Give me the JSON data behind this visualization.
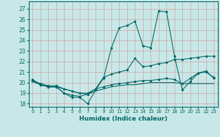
{
  "xlabel": "Humidex (Indice chaleur)",
  "background_color": "#c8e8e8",
  "line_color": "#006666",
  "xlim": [
    -0.5,
    23.5
  ],
  "ylim": [
    17.7,
    27.7
  ],
  "yticks": [
    18,
    19,
    20,
    21,
    22,
    23,
    24,
    25,
    26,
    27
  ],
  "xticks": [
    0,
    1,
    2,
    3,
    4,
    5,
    6,
    7,
    8,
    9,
    10,
    11,
    12,
    13,
    14,
    15,
    16,
    17,
    18,
    19,
    20,
    21,
    22,
    23
  ],
  "lines": [
    {
      "x": [
        0,
        1,
        2,
        3,
        4,
        5,
        6,
        7,
        8,
        9,
        10,
        11,
        12,
        13,
        14,
        15,
        16,
        17,
        18,
        19,
        20,
        21,
        22,
        23
      ],
      "y": [
        20.3,
        19.8,
        19.6,
        19.6,
        19.0,
        18.6,
        18.6,
        18.0,
        19.3,
        20.4,
        23.3,
        25.2,
        25.4,
        25.8,
        23.5,
        23.3,
        26.8,
        26.7,
        22.5,
        19.3,
        20.1,
        20.9,
        21.1,
        20.4
      ],
      "marker": true
    },
    {
      "x": [
        0,
        1,
        2,
        3,
        4,
        5,
        6,
        7,
        8,
        9,
        10,
        11,
        12,
        13,
        14,
        15,
        16,
        17,
        18,
        19,
        20,
        21,
        22,
        23
      ],
      "y": [
        20.2,
        19.8,
        19.6,
        19.6,
        19.0,
        18.8,
        18.7,
        18.9,
        19.4,
        20.5,
        20.8,
        21.0,
        21.2,
        22.3,
        21.5,
        21.6,
        21.8,
        21.9,
        22.2,
        22.2,
        22.3,
        22.4,
        22.5,
        22.5
      ],
      "marker": true
    },
    {
      "x": [
        0,
        1,
        2,
        3,
        4,
        5,
        6,
        7,
        8,
        9,
        10,
        11,
        12,
        13,
        14,
        15,
        16,
        17,
        18,
        19,
        20,
        21,
        22,
        23
      ],
      "y": [
        20.2,
        19.9,
        19.7,
        19.7,
        19.4,
        19.2,
        19.0,
        19.0,
        19.4,
        19.6,
        19.8,
        19.9,
        20.0,
        20.1,
        20.2,
        20.2,
        20.3,
        20.4,
        20.3,
        19.9,
        20.4,
        20.9,
        21.0,
        20.5
      ],
      "marker": true
    },
    {
      "x": [
        0,
        1,
        2,
        3,
        4,
        5,
        6,
        7,
        8,
        9,
        10,
        11,
        12,
        13,
        14,
        15,
        16,
        17,
        18,
        19,
        20,
        21,
        22,
        23
      ],
      "y": [
        20.1,
        19.8,
        19.6,
        19.6,
        19.4,
        19.2,
        19.0,
        18.9,
        19.2,
        19.4,
        19.6,
        19.7,
        19.8,
        19.8,
        19.9,
        20.0,
        20.0,
        20.0,
        20.0,
        19.9,
        19.9,
        19.9,
        19.9,
        19.9
      ],
      "marker": false
    }
  ]
}
